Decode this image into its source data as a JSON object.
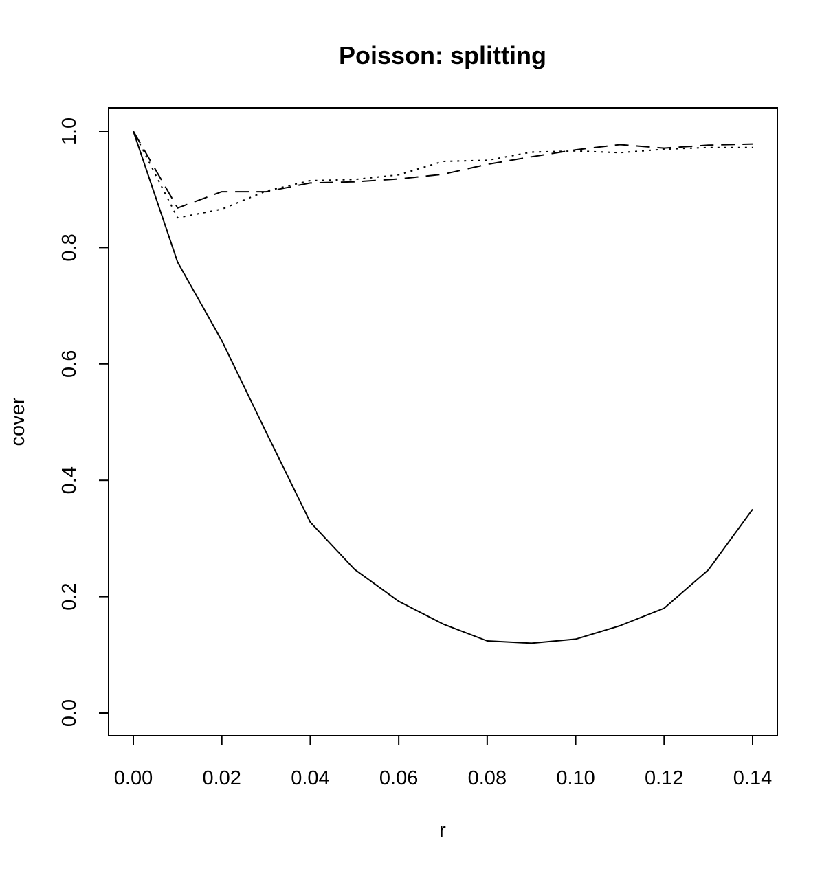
{
  "chart_data": {
    "type": "line",
    "title": "Poisson: splitting",
    "xlabel": "r",
    "ylabel": "cover",
    "xlim": [
      0.0,
      0.14
    ],
    "ylim": [
      0.0,
      1.0
    ],
    "x_ticks": [
      "0.00",
      "0.02",
      "0.04",
      "0.06",
      "0.08",
      "0.10",
      "0.12",
      "0.14"
    ],
    "x_tick_values": [
      0.0,
      0.02,
      0.04,
      0.06,
      0.08,
      0.1,
      0.12,
      0.14
    ],
    "y_ticks": [
      "0.0",
      "0.2",
      "0.4",
      "0.6",
      "0.8",
      "1.0"
    ],
    "y_tick_values": [
      0.0,
      0.2,
      0.4,
      0.6,
      0.8,
      1.0
    ],
    "grid": false,
    "legend": "none",
    "x": [
      0.0,
      0.01,
      0.02,
      0.03,
      0.04,
      0.05,
      0.06,
      0.07,
      0.08,
      0.09,
      0.1,
      0.11,
      0.12,
      0.13,
      0.14
    ],
    "series": [
      {
        "line_style": "solid",
        "color": "#000000",
        "values": [
          1.0,
          0.775,
          0.64,
          0.483,
          0.328,
          0.247,
          0.192,
          0.153,
          0.124,
          0.12,
          0.127,
          0.15,
          0.18,
          0.246,
          0.35
        ]
      },
      {
        "line_style": "dashed",
        "color": "#000000",
        "values": [
          1.0,
          0.868,
          0.896,
          0.896,
          0.911,
          0.913,
          0.918,
          0.926,
          0.943,
          0.956,
          0.968,
          0.977,
          0.971,
          0.976,
          0.978
        ]
      },
      {
        "line_style": "dotted",
        "color": "#000000",
        "values": [
          1.0,
          0.851,
          0.866,
          0.897,
          0.915,
          0.917,
          0.925,
          0.948,
          0.95,
          0.964,
          0.966,
          0.963,
          0.969,
          0.972,
          0.972
        ]
      }
    ]
  }
}
